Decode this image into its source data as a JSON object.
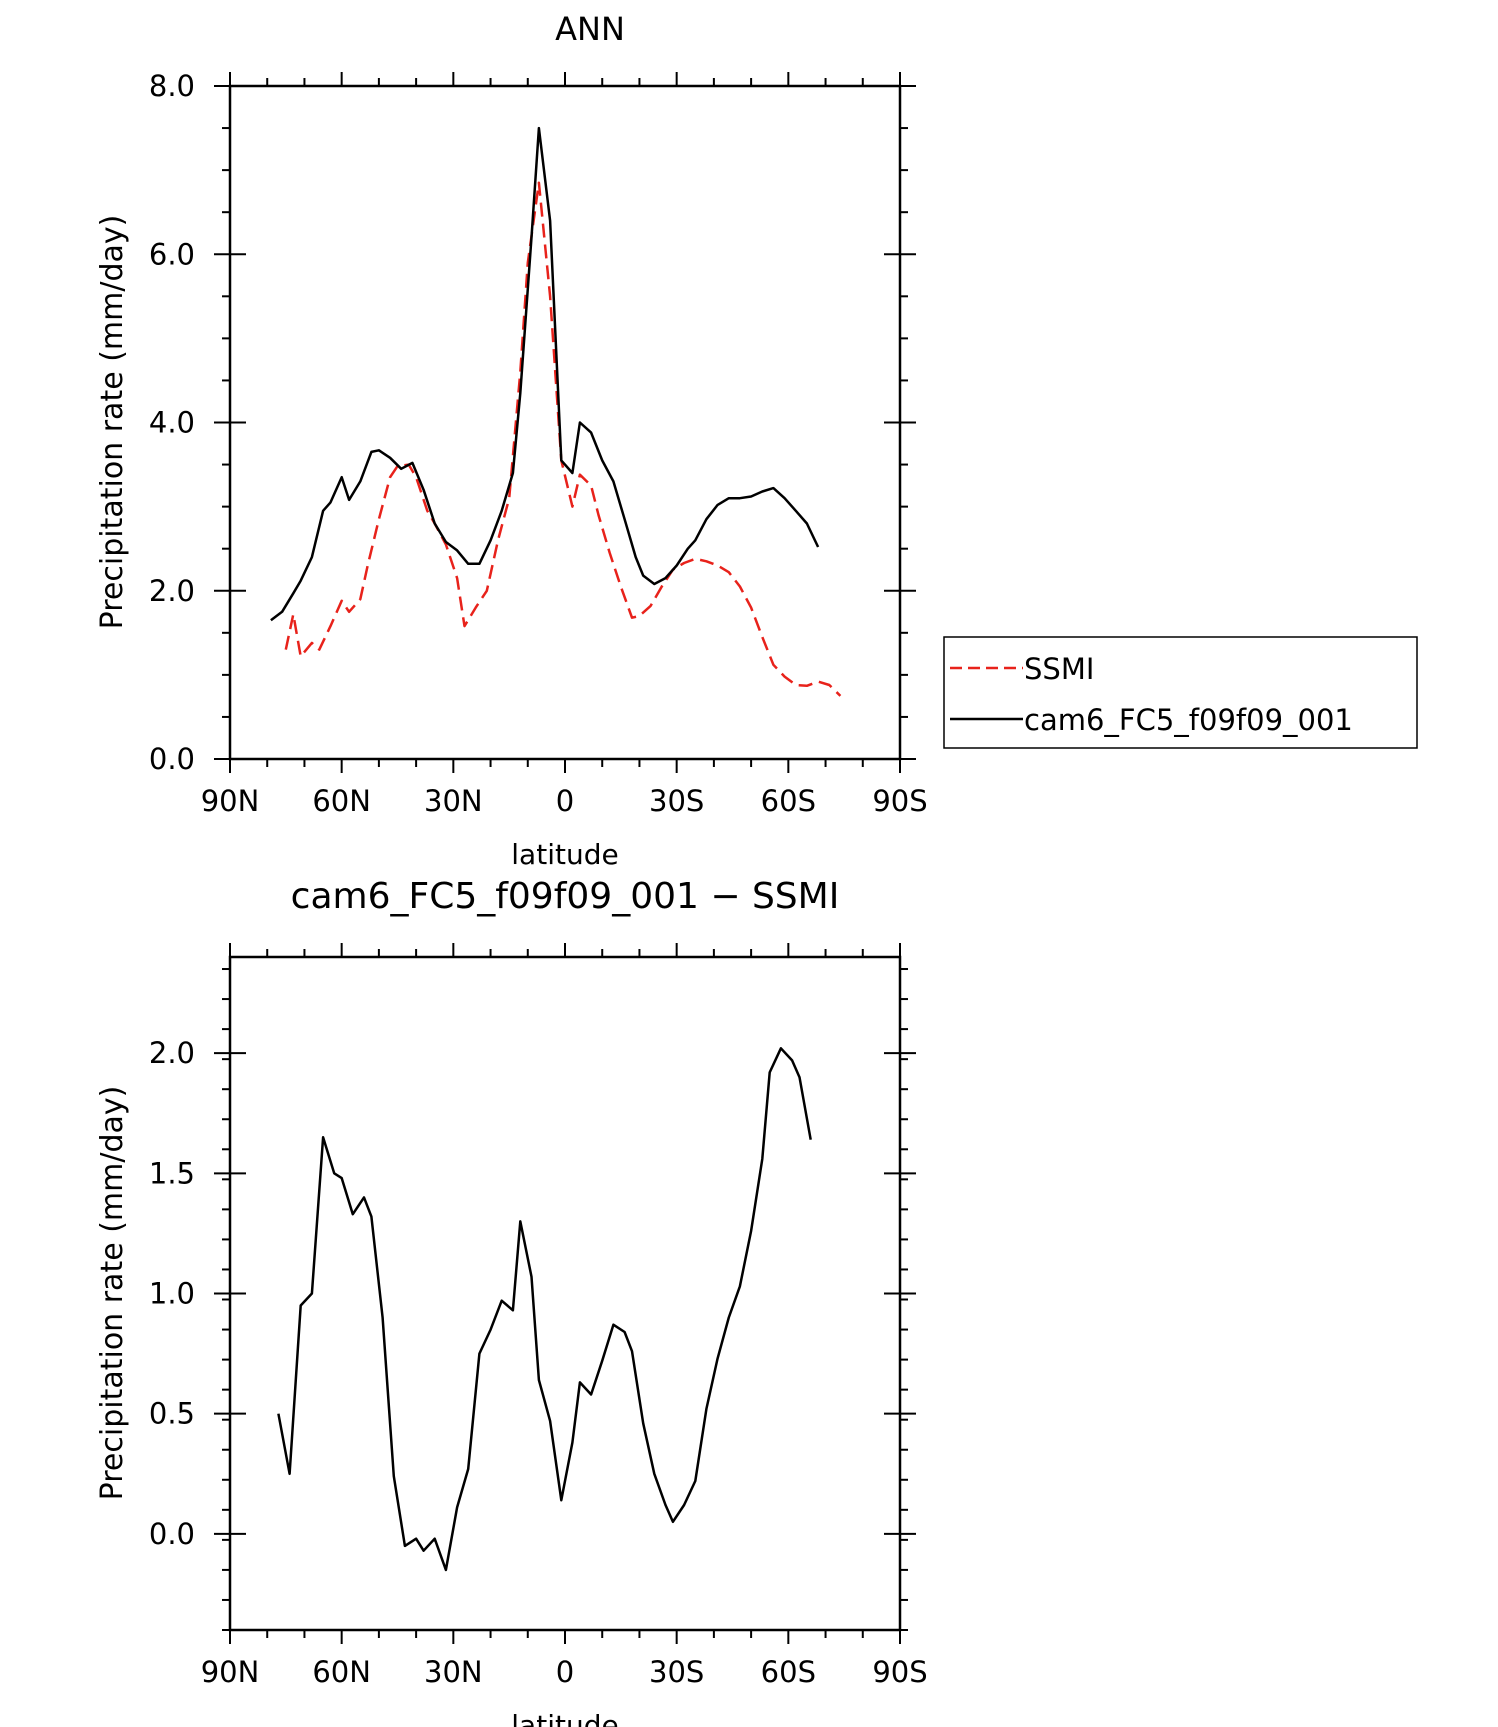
{
  "chart_data": [
    {
      "type": "line",
      "title": "ANN",
      "xlabel": "latitude",
      "ylabel": "Precipitation rate (mm/day)",
      "xlim": [
        -90,
        90
      ],
      "ylim": [
        0,
        8
      ],
      "x_ticks": [
        "90N",
        "60N",
        "30N",
        "0",
        "30S",
        "60S",
        "90S"
      ],
      "y_ticks": [
        "0.0",
        "2.0",
        "4.0",
        "6.0",
        "8.0"
      ],
      "legend": "right",
      "series": [
        {
          "name": "SSMI",
          "color": "#e8221b",
          "style": "dashed",
          "points": [
            [
              -75,
              1.3
            ],
            [
              -73,
              1.72
            ],
            [
              -71,
              1.22
            ],
            [
              -68,
              1.38
            ],
            [
              -66,
              1.3
            ],
            [
              -63,
              1.58
            ],
            [
              -60,
              1.88
            ],
            [
              -58,
              1.75
            ],
            [
              -55,
              1.9
            ],
            [
              -53,
              2.3
            ],
            [
              -50,
              2.85
            ],
            [
              -47,
              3.35
            ],
            [
              -45,
              3.48
            ],
            [
              -42,
              3.5
            ],
            [
              -40,
              3.35
            ],
            [
              -37,
              2.95
            ],
            [
              -35,
              2.8
            ],
            [
              -32,
              2.55
            ],
            [
              -29,
              2.15
            ],
            [
              -27,
              1.58
            ],
            [
              -24,
              1.8
            ],
            [
              -21,
              2.0
            ],
            [
              -18,
              2.6
            ],
            [
              -15,
              3.1
            ],
            [
              -12,
              4.6
            ],
            [
              -10,
              5.9
            ],
            [
              -7,
              6.85
            ],
            [
              -4,
              5.5
            ],
            [
              -1,
              3.55
            ],
            [
              2,
              3.0
            ],
            [
              4,
              3.38
            ],
            [
              7,
              3.25
            ],
            [
              9,
              2.9
            ],
            [
              12,
              2.45
            ],
            [
              15,
              2.05
            ],
            [
              18,
              1.68
            ],
            [
              20,
              1.7
            ],
            [
              23,
              1.82
            ],
            [
              26,
              2.05
            ],
            [
              29,
              2.25
            ],
            [
              32,
              2.33
            ],
            [
              35,
              2.38
            ],
            [
              38,
              2.35
            ],
            [
              41,
              2.3
            ],
            [
              44,
              2.22
            ],
            [
              47,
              2.05
            ],
            [
              50,
              1.8
            ],
            [
              53,
              1.45
            ],
            [
              56,
              1.12
            ],
            [
              59,
              0.98
            ],
            [
              62,
              0.88
            ],
            [
              65,
              0.87
            ],
            [
              68,
              0.92
            ],
            [
              71,
              0.88
            ],
            [
              74,
              0.75
            ]
          ]
        },
        {
          "name": "cam6_FC5_f09f09_001",
          "color": "#000000",
          "style": "solid",
          "points": [
            [
              -79,
              1.65
            ],
            [
              -76,
              1.75
            ],
            [
              -73,
              1.97
            ],
            [
              -71,
              2.12
            ],
            [
              -68,
              2.4
            ],
            [
              -65,
              2.95
            ],
            [
              -63,
              3.05
            ],
            [
              -60,
              3.35
            ],
            [
              -58,
              3.08
            ],
            [
              -55,
              3.3
            ],
            [
              -52,
              3.65
            ],
            [
              -50,
              3.67
            ],
            [
              -47,
              3.58
            ],
            [
              -44,
              3.45
            ],
            [
              -41,
              3.52
            ],
            [
              -38,
              3.2
            ],
            [
              -35,
              2.8
            ],
            [
              -32,
              2.58
            ],
            [
              -29,
              2.48
            ],
            [
              -26,
              2.32
            ],
            [
              -23,
              2.32
            ],
            [
              -20,
              2.6
            ],
            [
              -17,
              2.95
            ],
            [
              -14,
              3.4
            ],
            [
              -12,
              4.35
            ],
            [
              -9,
              6.2
            ],
            [
              -7,
              7.5
            ],
            [
              -4,
              6.4
            ],
            [
              -1,
              3.55
            ],
            [
              2,
              3.4
            ],
            [
              4,
              4.0
            ],
            [
              7,
              3.88
            ],
            [
              10,
              3.55
            ],
            [
              13,
              3.3
            ],
            [
              16,
              2.85
            ],
            [
              19,
              2.4
            ],
            [
              21,
              2.18
            ],
            [
              24,
              2.08
            ],
            [
              27,
              2.15
            ],
            [
              30,
              2.3
            ],
            [
              33,
              2.5
            ],
            [
              35,
              2.6
            ],
            [
              38,
              2.85
            ],
            [
              41,
              3.02
            ],
            [
              44,
              3.1
            ],
            [
              47,
              3.1
            ],
            [
              50,
              3.12
            ],
            [
              53,
              3.18
            ],
            [
              56,
              3.22
            ],
            [
              59,
              3.1
            ],
            [
              62,
              2.95
            ],
            [
              65,
              2.8
            ],
            [
              68,
              2.52
            ]
          ]
        }
      ]
    },
    {
      "type": "line",
      "title": "cam6_FC5_f09f09_001 − SSMI",
      "xlabel": "latitude",
      "ylabel": "Precipitation rate (mm/day)",
      "xlim": [
        -90,
        90
      ],
      "ylim": [
        -0.4,
        2.4
      ],
      "x_ticks": [
        "90N",
        "60N",
        "30N",
        "0",
        "30S",
        "60S",
        "90S"
      ],
      "y_ticks": [
        "0.0",
        "0.5",
        "1.0",
        "1.5",
        "2.0"
      ],
      "series": [
        {
          "color": "#000000",
          "style": "solid",
          "points": [
            [
              -77,
              0.5
            ],
            [
              -74,
              0.25
            ],
            [
              -71,
              0.95
            ],
            [
              -68,
              1.0
            ],
            [
              -65,
              1.65
            ],
            [
              -62,
              1.5
            ],
            [
              -60,
              1.48
            ],
            [
              -57,
              1.33
            ],
            [
              -54,
              1.4
            ],
            [
              -52,
              1.32
            ],
            [
              -49,
              0.9
            ],
            [
              -46,
              0.24
            ],
            [
              -43,
              -0.05
            ],
            [
              -40,
              -0.02
            ],
            [
              -38,
              -0.07
            ],
            [
              -35,
              -0.02
            ],
            [
              -32,
              -0.15
            ],
            [
              -29,
              0.11
            ],
            [
              -26,
              0.27
            ],
            [
              -23,
              0.75
            ],
            [
              -20,
              0.85
            ],
            [
              -17,
              0.97
            ],
            [
              -14,
              0.93
            ],
            [
              -12,
              1.3
            ],
            [
              -9,
              1.07
            ],
            [
              -7,
              0.64
            ],
            [
              -4,
              0.47
            ],
            [
              -1,
              0.14
            ],
            [
              2,
              0.38
            ],
            [
              4,
              0.63
            ],
            [
              7,
              0.58
            ],
            [
              10,
              0.72
            ],
            [
              13,
              0.87
            ],
            [
              16,
              0.84
            ],
            [
              18,
              0.76
            ],
            [
              21,
              0.46
            ],
            [
              24,
              0.25
            ],
            [
              27,
              0.12
            ],
            [
              29,
              0.05
            ],
            [
              32,
              0.12
            ],
            [
              35,
              0.22
            ],
            [
              38,
              0.52
            ],
            [
              41,
              0.73
            ],
            [
              44,
              0.9
            ],
            [
              47,
              1.03
            ],
            [
              50,
              1.26
            ],
            [
              53,
              1.56
            ],
            [
              55,
              1.92
            ],
            [
              58,
              2.02
            ],
            [
              61,
              1.97
            ],
            [
              63,
              1.9
            ],
            [
              66,
              1.64
            ]
          ]
        }
      ]
    }
  ]
}
